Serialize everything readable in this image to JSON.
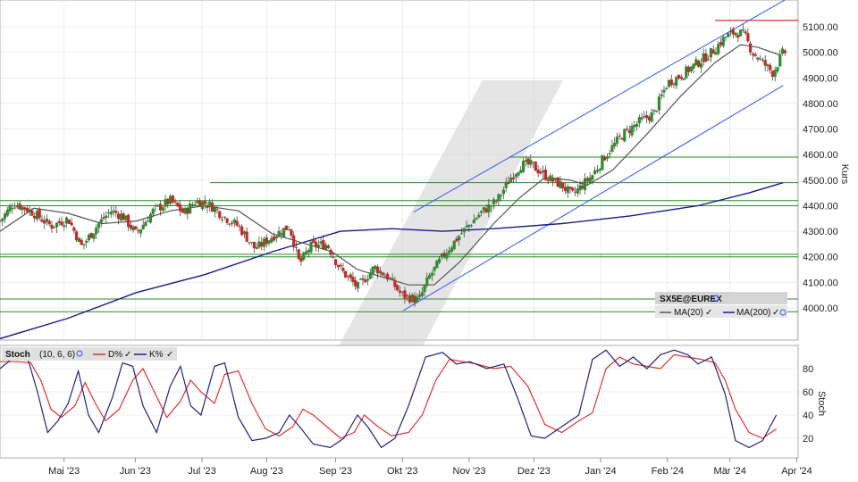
{
  "colors": {
    "background": "#ffffff",
    "grid": "#e0e0e0",
    "candle_up": "#2e8b2e",
    "candle_down": "#c62828",
    "ma20": "#555555",
    "ma200": "#1a1a8c",
    "channel": "#3355ff",
    "support": "#2a8a2a",
    "resistance": "#e23030",
    "stoch_d": "#e23030",
    "stoch_k": "#22227a",
    "panel_bg": "#dcdcdc"
  },
  "chart_data": [
    {
      "type": "candlestick",
      "instrument": "SX5E@EUREX",
      "ylabel": "Kurs",
      "ylim": [
        3900,
        5150
      ],
      "yticks": [
        "5100.00",
        "5000.00",
        "4900.00",
        "4800.00",
        "4700.00",
        "4600.00",
        "4500.00",
        "4400.00",
        "4300.00",
        "4200.00",
        "4100.00",
        "4000.00"
      ],
      "xticks": [
        "Mai '23",
        "Jun '23",
        "Jul '23",
        "Aug '23",
        "Sep '23",
        "Okt '23",
        "Nov '23",
        "Dez '23",
        "Jan '24",
        "Feb '24",
        "Mär '24",
        "Apr '24"
      ],
      "close_path": [
        [
          0,
          4340
        ],
        [
          8,
          4410
        ],
        [
          18,
          4380
        ],
        [
          30,
          4320
        ],
        [
          40,
          4350
        ],
        [
          48,
          4240
        ],
        [
          58,
          4330
        ],
        [
          65,
          4380
        ],
        [
          72,
          4360
        ],
        [
          80,
          4290
        ],
        [
          90,
          4380
        ],
        [
          100,
          4420
        ],
        [
          108,
          4370
        ],
        [
          115,
          4420
        ],
        [
          124,
          4400
        ],
        [
          131,
          4360
        ],
        [
          140,
          4320
        ],
        [
          150,
          4230
        ],
        [
          160,
          4280
        ],
        [
          170,
          4320
        ],
        [
          176,
          4170
        ],
        [
          182,
          4240
        ],
        [
          192,
          4250
        ],
        [
          200,
          4150
        ],
        [
          210,
          4080
        ],
        [
          220,
          4160
        ],
        [
          228,
          4120
        ],
        [
          236,
          4050
        ],
        [
          246,
          4030
        ],
        [
          252,
          4120
        ],
        [
          262,
          4220
        ],
        [
          272,
          4300
        ],
        [
          282,
          4370
        ],
        [
          292,
          4420
        ],
        [
          300,
          4510
        ],
        [
          306,
          4560
        ],
        [
          312,
          4560
        ],
        [
          318,
          4530
        ],
        [
          324,
          4500
        ],
        [
          330,
          4480
        ],
        [
          336,
          4440
        ],
        [
          342,
          4480
        ],
        [
          348,
          4520
        ],
        [
          356,
          4600
        ],
        [
          366,
          4680
        ],
        [
          376,
          4730
        ],
        [
          384,
          4760
        ],
        [
          392,
          4880
        ],
        [
          400,
          4910
        ],
        [
          410,
          4960
        ],
        [
          418,
          5000
        ],
        [
          426,
          5060
        ],
        [
          432,
          5080
        ],
        [
          437,
          5070
        ],
        [
          442,
          5000
        ],
        [
          448,
          4960
        ],
        [
          454,
          4920
        ],
        [
          460,
          5000
        ]
      ],
      "ma20_path": [
        [
          0,
          4300
        ],
        [
          20,
          4390
        ],
        [
          40,
          4370
        ],
        [
          60,
          4330
        ],
        [
          80,
          4340
        ],
        [
          100,
          4380
        ],
        [
          120,
          4400
        ],
        [
          140,
          4380
        ],
        [
          160,
          4290
        ],
        [
          180,
          4250
        ],
        [
          195,
          4220
        ],
        [
          210,
          4150
        ],
        [
          225,
          4120
        ],
        [
          240,
          4090
        ],
        [
          255,
          4090
        ],
        [
          270,
          4180
        ],
        [
          290,
          4330
        ],
        [
          305,
          4430
        ],
        [
          320,
          4510
        ],
        [
          335,
          4500
        ],
        [
          345,
          4480
        ],
        [
          360,
          4540
        ],
        [
          380,
          4680
        ],
        [
          400,
          4830
        ],
        [
          420,
          4960
        ],
        [
          435,
          5030
        ],
        [
          445,
          5020
        ],
        [
          458,
          4990
        ]
      ],
      "ma200_path": [
        [
          0,
          3880
        ],
        [
          40,
          3960
        ],
        [
          80,
          4060
        ],
        [
          120,
          4130
        ],
        [
          160,
          4220
        ],
        [
          200,
          4300
        ],
        [
          230,
          4310
        ],
        [
          260,
          4300
        ],
        [
          290,
          4310
        ],
        [
          330,
          4330
        ],
        [
          370,
          4360
        ],
        [
          410,
          4400
        ],
        [
          440,
          4450
        ],
        [
          460,
          4490
        ]
      ],
      "support_lines": [
        4590,
        4490,
        4420,
        4400,
        4210,
        4200,
        4035,
        3985
      ],
      "resistance_line": 5125,
      "channel_upper": [
        [
          243,
          4375
        ],
        [
          465,
          5220
        ]
      ],
      "channel_lower": [
        [
          237,
          3990
        ],
        [
          460,
          4870
        ]
      ],
      "last_close": 5000
    },
    {
      "type": "line",
      "name": "Stoch",
      "ylabel": "Stoch",
      "params": "(10, 6, 6)",
      "ylim": [
        0,
        100
      ],
      "yticks": [
        "80",
        "60",
        "40",
        "20"
      ],
      "series": [
        {
          "name": "D%",
          "values": [
            [
              0,
              86
            ],
            [
              10,
              86
            ],
            [
              18,
              85
            ],
            [
              24,
              70
            ],
            [
              30,
              45
            ],
            [
              36,
              38
            ],
            [
              44,
              48
            ],
            [
              50,
              68
            ],
            [
              56,
              50
            ],
            [
              62,
              35
            ],
            [
              70,
              45
            ],
            [
              78,
              70
            ],
            [
              84,
              80
            ],
            [
              90,
              62
            ],
            [
              98,
              38
            ],
            [
              106,
              52
            ],
            [
              112,
              70
            ],
            [
              118,
              60
            ],
            [
              126,
              50
            ],
            [
              132,
              75
            ],
            [
              140,
              78
            ],
            [
              148,
              50
            ],
            [
              156,
              28
            ],
            [
              164,
              22
            ],
            [
              172,
              30
            ],
            [
              178,
              45
            ],
            [
              184,
              40
            ],
            [
              192,
              30
            ],
            [
              200,
              20
            ],
            [
              208,
              25
            ],
            [
              214,
              40
            ],
            [
              222,
              30
            ],
            [
              230,
              22
            ],
            [
              240,
              25
            ],
            [
              248,
              40
            ],
            [
              256,
              70
            ],
            [
              264,
              88
            ],
            [
              272,
              86
            ],
            [
              280,
              84
            ],
            [
              290,
              80
            ],
            [
              300,
              82
            ],
            [
              310,
              65
            ],
            [
              320,
              32
            ],
            [
              330,
              25
            ],
            [
              340,
              35
            ],
            [
              348,
              42
            ],
            [
              356,
              80
            ],
            [
              364,
              90
            ],
            [
              372,
              84
            ],
            [
              380,
              82
            ],
            [
              388,
              80
            ],
            [
              396,
              92
            ],
            [
              404,
              90
            ],
            [
              412,
              88
            ],
            [
              420,
              85
            ],
            [
              426,
              70
            ],
            [
              432,
              45
            ],
            [
              440,
              25
            ],
            [
              448,
              20
            ],
            [
              456,
              28
            ]
          ]
        },
        {
          "name": "K%",
          "values": [
            [
              0,
              80
            ],
            [
              10,
              92
            ],
            [
              16,
              90
            ],
            [
              22,
              60
            ],
            [
              28,
              25
            ],
            [
              34,
              35
            ],
            [
              40,
              50
            ],
            [
              46,
              78
            ],
            [
              52,
              40
            ],
            [
              58,
              25
            ],
            [
              66,
              55
            ],
            [
              72,
              85
            ],
            [
              78,
              82
            ],
            [
              84,
              48
            ],
            [
              92,
              25
            ],
            [
              100,
              65
            ],
            [
              106,
              82
            ],
            [
              112,
              48
            ],
            [
              118,
              40
            ],
            [
              126,
              82
            ],
            [
              132,
              85
            ],
            [
              140,
              38
            ],
            [
              148,
              18
            ],
            [
              156,
              20
            ],
            [
              164,
              25
            ],
            [
              170,
              40
            ],
            [
              176,
              30
            ],
            [
              184,
              15
            ],
            [
              194,
              12
            ],
            [
              202,
              20
            ],
            [
              210,
              40
            ],
            [
              216,
              30
            ],
            [
              224,
              12
            ],
            [
              232,
              20
            ],
            [
              240,
              48
            ],
            [
              250,
              90
            ],
            [
              260,
              94
            ],
            [
              268,
              84
            ],
            [
              276,
              86
            ],
            [
              286,
              80
            ],
            [
              296,
              84
            ],
            [
              304,
              55
            ],
            [
              312,
              22
            ],
            [
              320,
              20
            ],
            [
              330,
              30
            ],
            [
              340,
              40
            ],
            [
              348,
              88
            ],
            [
              356,
              96
            ],
            [
              364,
              82
            ],
            [
              372,
              90
            ],
            [
              380,
              80
            ],
            [
              388,
              92
            ],
            [
              396,
              96
            ],
            [
              404,
              92
            ],
            [
              410,
              84
            ],
            [
              418,
              90
            ],
            [
              426,
              58
            ],
            [
              432,
              18
            ],
            [
              440,
              12
            ],
            [
              448,
              18
            ],
            [
              456,
              40
            ]
          ]
        }
      ]
    }
  ],
  "legend": {
    "instrument_label": "SX5E@EUREX",
    "ma20_label": "MA(20)",
    "ma200_label": "MA(200)",
    "stoch_title": "Stoch",
    "stoch_params": "(10, 6, 6)",
    "stoch_d_label": "D%",
    "stoch_k_label": "K%"
  }
}
